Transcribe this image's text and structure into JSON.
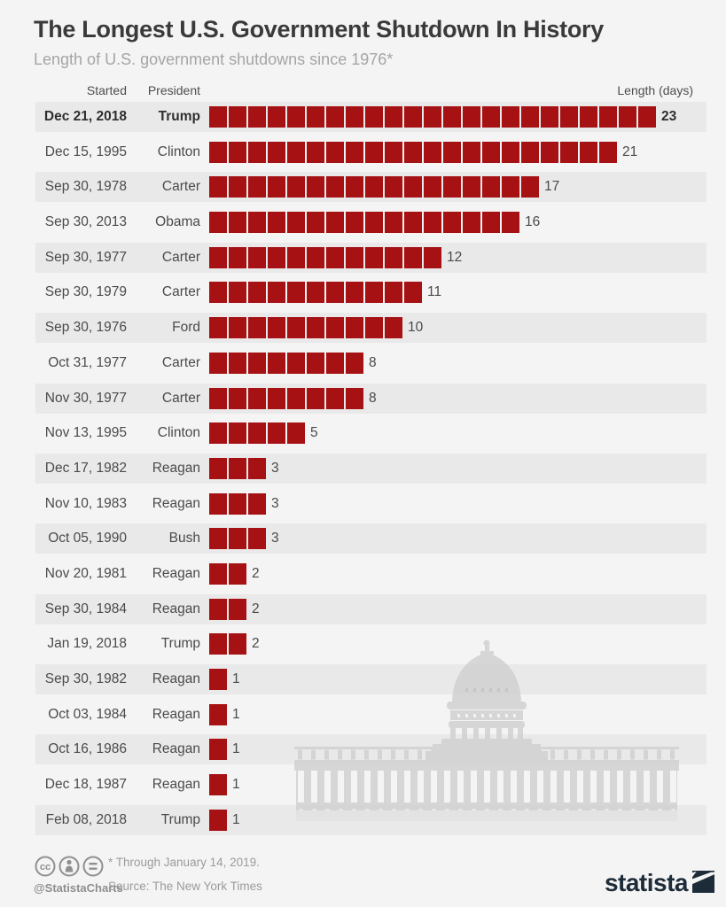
{
  "title": "The Longest U.S. Government Shutdown In History",
  "subtitle": "Length of U.S. government shutdowns since 1976*",
  "columns": {
    "started": "Started",
    "president": "President",
    "length": "Length (days)"
  },
  "rows": [
    {
      "started": "Dec 21, 2018",
      "president": "Trump",
      "days": 23,
      "highlight": true
    },
    {
      "started": "Dec 15, 1995",
      "president": "Clinton",
      "days": 21
    },
    {
      "started": "Sep 30, 1978",
      "president": "Carter",
      "days": 17
    },
    {
      "started": "Sep 30, 2013",
      "president": "Obama",
      "days": 16
    },
    {
      "started": "Sep 30, 1977",
      "president": "Carter",
      "days": 12
    },
    {
      "started": "Sep 30, 1979",
      "president": "Carter",
      "days": 11
    },
    {
      "started": "Sep 30, 1976",
      "president": "Ford",
      "days": 10
    },
    {
      "started": "Oct 31, 1977",
      "president": "Carter",
      "days": 8
    },
    {
      "started": "Nov 30, 1977",
      "president": "Carter",
      "days": 8
    },
    {
      "started": "Nov 13, 1995",
      "president": "Clinton",
      "days": 5
    },
    {
      "started": "Dec 17, 1982",
      "president": "Reagan",
      "days": 3
    },
    {
      "started": "Nov 10, 1983",
      "president": "Reagan",
      "days": 3
    },
    {
      "started": "Oct 05, 1990",
      "president": "Bush",
      "days": 3
    },
    {
      "started": "Nov 20, 1981",
      "president": "Reagan",
      "days": 2
    },
    {
      "started": "Sep 30, 1984",
      "president": "Reagan",
      "days": 2
    },
    {
      "started": "Jan 19, 2018",
      "president": "Trump",
      "days": 2
    },
    {
      "started": "Sep 30, 1982",
      "president": "Reagan",
      "days": 1
    },
    {
      "started": "Oct 03, 1984",
      "president": "Reagan",
      "days": 1
    },
    {
      "started": "Oct 16, 1986",
      "president": "Reagan",
      "days": 1
    },
    {
      "started": "Dec 18, 1987",
      "president": "Reagan",
      "days": 1
    },
    {
      "started": "Feb 08, 2018",
      "president": "Trump",
      "days": 1
    }
  ],
  "footer": {
    "handle": "@StatistaCharts",
    "note": "* Through January 14, 2019.",
    "source": "Source: The New York Times",
    "brand": "statista",
    "license_icons": [
      "cc-icon",
      "attribution-person-icon",
      "equals-icon"
    ]
  },
  "decor": {
    "watermark": "us-capitol-building"
  },
  "colors": {
    "bar_red": "#a61113",
    "row_stripe": "#e9e9e9",
    "background": "#f4f4f4",
    "brand_navy": "#1e2c3a",
    "watermark_gray": "#cfcfcf"
  },
  "chart_data": {
    "type": "bar",
    "orientation": "horizontal",
    "title": "The Longest U.S. Government Shutdown In History",
    "subtitle": "Length of U.S. government shutdowns since 1976*",
    "categories": [
      "Dec 21, 2018",
      "Dec 15, 1995",
      "Sep 30, 1978",
      "Sep 30, 2013",
      "Sep 30, 1977",
      "Sep 30, 1979",
      "Sep 30, 1976",
      "Oct 31, 1977",
      "Nov 30, 1977",
      "Nov 13, 1995",
      "Dec 17, 1982",
      "Nov 10, 1983",
      "Oct 05, 1990",
      "Nov 20, 1981",
      "Sep 30, 1984",
      "Jan 19, 2018",
      "Sep 30, 1982",
      "Oct 03, 1984",
      "Oct 16, 1986",
      "Dec 18, 1987",
      "Feb 08, 2018"
    ],
    "group_labels": [
      "Trump",
      "Clinton",
      "Carter",
      "Obama",
      "Carter",
      "Carter",
      "Ford",
      "Carter",
      "Carter",
      "Clinton",
      "Reagan",
      "Reagan",
      "Bush",
      "Reagan",
      "Reagan",
      "Trump",
      "Reagan",
      "Reagan",
      "Reagan",
      "Reagan",
      "Trump"
    ],
    "series": [
      {
        "name": "Length (days)",
        "values": [
          23,
          21,
          17,
          16,
          12,
          11,
          10,
          8,
          8,
          5,
          3,
          3,
          3,
          2,
          2,
          2,
          1,
          1,
          1,
          1,
          1
        ]
      }
    ],
    "xlabel": "Length (days)",
    "xlim": [
      0,
      23
    ],
    "grid": false,
    "bar_style": "segmented-unit-squares",
    "annotations": "value labels at bar ends; top row emphasized bold"
  }
}
